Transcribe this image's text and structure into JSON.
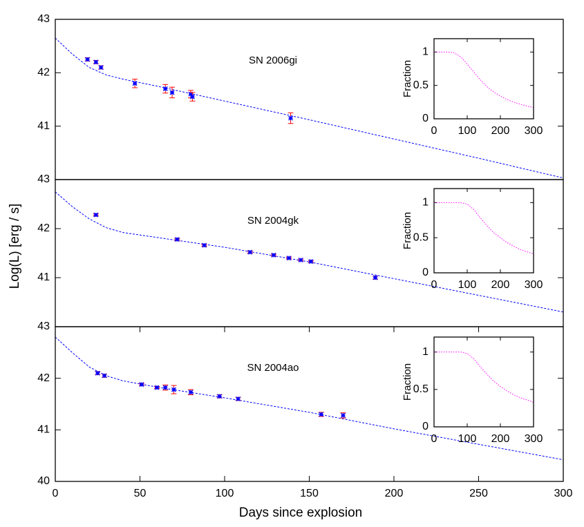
{
  "chart_data": [
    {
      "type": "line",
      "annotation": "SN 2006gi",
      "xlim": [
        0,
        300
      ],
      "ylim": [
        40,
        43
      ],
      "yticks": [
        41,
        42,
        43
      ],
      "series": [
        {
          "kind": "model",
          "color": "#0000ff",
          "x": [
            0,
            10,
            20,
            30,
            40,
            60,
            100,
            150,
            200,
            250,
            300
          ],
          "values": [
            42.65,
            42.35,
            42.1,
            41.96,
            41.88,
            41.75,
            41.47,
            41.12,
            40.76,
            40.4,
            40.03
          ]
        },
        {
          "kind": "observed",
          "color": "#0000ff",
          "error_color": "#ff0000",
          "x": [
            19,
            24,
            27,
            47,
            65,
            69,
            80,
            81,
            139
          ],
          "values": [
            42.25,
            42.2,
            42.1,
            41.8,
            41.7,
            41.63,
            41.6,
            41.55,
            41.15
          ],
          "errors": [
            0.03,
            0.03,
            0.03,
            0.08,
            0.08,
            0.1,
            0.07,
            0.08,
            0.1
          ]
        }
      ]
    },
    {
      "type": "line",
      "annotation": "SN 2004gk",
      "y_label": "Log(L) [erg / s]",
      "xlim": [
        0,
        300
      ],
      "ylim": [
        40,
        43
      ],
      "yticks": [
        41,
        42,
        43
      ],
      "series": [
        {
          "kind": "model",
          "color": "#0000ff",
          "x": [
            0,
            10,
            20,
            30,
            40,
            60,
            100,
            150,
            200,
            250,
            300
          ],
          "values": [
            42.75,
            42.45,
            42.2,
            42.02,
            41.92,
            41.82,
            41.62,
            41.32,
            40.98,
            40.64,
            40.3
          ]
        },
        {
          "kind": "observed",
          "color": "#0000ff",
          "error_color": "#ff0000",
          "x": [
            24,
            72,
            88,
            115,
            129,
            138,
            145,
            151,
            189
          ],
          "values": [
            42.28,
            41.78,
            41.66,
            41.52,
            41.46,
            41.4,
            41.36,
            41.33,
            41.0
          ],
          "errors": [
            0.02,
            0.02,
            0.02,
            0.02,
            0.02,
            0.02,
            0.02,
            0.02,
            0.03
          ]
        }
      ]
    },
    {
      "type": "line",
      "annotation": "SN 2004ao",
      "x_label": "Days since explosion",
      "xlim": [
        0,
        300
      ],
      "ylim": [
        40,
        43
      ],
      "yticks": [
        40,
        41,
        42,
        43
      ],
      "xticks": [
        0,
        50,
        100,
        150,
        200,
        250,
        300
      ],
      "series": [
        {
          "kind": "model",
          "color": "#0000ff",
          "x": [
            0,
            10,
            20,
            30,
            40,
            60,
            100,
            150,
            200,
            250,
            300
          ],
          "values": [
            42.8,
            42.5,
            42.22,
            42.05,
            41.95,
            41.83,
            41.62,
            41.34,
            41.02,
            40.72,
            40.42
          ]
        },
        {
          "kind": "observed",
          "color": "#0000ff",
          "error_color": "#ff0000",
          "x": [
            25,
            29,
            51,
            60,
            65,
            70,
            80,
            97,
            108,
            157,
            170
          ],
          "values": [
            42.1,
            42.05,
            41.88,
            41.82,
            41.82,
            41.78,
            41.73,
            41.65,
            41.6,
            41.3,
            41.28
          ],
          "errors": [
            0.03,
            0.03,
            0.02,
            0.02,
            0.05,
            0.08,
            0.05,
            0.03,
            0.03,
            0.04,
            0.05
          ]
        }
      ]
    },
    {
      "type": "line",
      "inset": true,
      "y_label": "Fraction",
      "xlim": [
        0,
        300
      ],
      "ylim": [
        0,
        1.2
      ],
      "xticks": [
        0,
        100,
        200,
        300
      ],
      "yticks": [
        0,
        0.5,
        1
      ],
      "series": [
        {
          "color": "#ff00ff",
          "x": [
            0,
            20,
            40,
            60,
            80,
            100,
            120,
            140,
            160,
            180,
            200,
            220,
            240,
            260,
            280,
            300
          ],
          "values": [
            1,
            1,
            1,
            0.99,
            0.93,
            0.82,
            0.7,
            0.58,
            0.48,
            0.4,
            0.34,
            0.29,
            0.25,
            0.22,
            0.19,
            0.17
          ]
        }
      ]
    },
    {
      "type": "line",
      "inset": true,
      "y_label": "Fraction",
      "xlim": [
        0,
        300
      ],
      "ylim": [
        0,
        1.2
      ],
      "xticks": [
        0,
        100,
        200,
        300
      ],
      "yticks": [
        0,
        0.5,
        1
      ],
      "series": [
        {
          "color": "#ff00ff",
          "x": [
            0,
            20,
            40,
            60,
            80,
            100,
            120,
            140,
            160,
            180,
            200,
            220,
            240,
            260,
            280,
            300
          ],
          "values": [
            1,
            1,
            1,
            1,
            1,
            0.98,
            0.9,
            0.78,
            0.67,
            0.57,
            0.5,
            0.43,
            0.38,
            0.33,
            0.3,
            0.27
          ]
        }
      ]
    },
    {
      "type": "line",
      "inset": true,
      "y_label": "Fraction",
      "xlim": [
        0,
        300
      ],
      "ylim": [
        0,
        1.2
      ],
      "xticks": [
        0,
        100,
        200,
        300
      ],
      "yticks": [
        0,
        0.5,
        1
      ],
      "series": [
        {
          "color": "#ff00ff",
          "x": [
            0,
            20,
            40,
            60,
            80,
            100,
            120,
            140,
            160,
            180,
            200,
            220,
            240,
            260,
            280,
            300
          ],
          "values": [
            1,
            1,
            1,
            1,
            1,
            0.98,
            0.91,
            0.8,
            0.7,
            0.61,
            0.54,
            0.48,
            0.43,
            0.39,
            0.36,
            0.33
          ]
        }
      ]
    }
  ]
}
